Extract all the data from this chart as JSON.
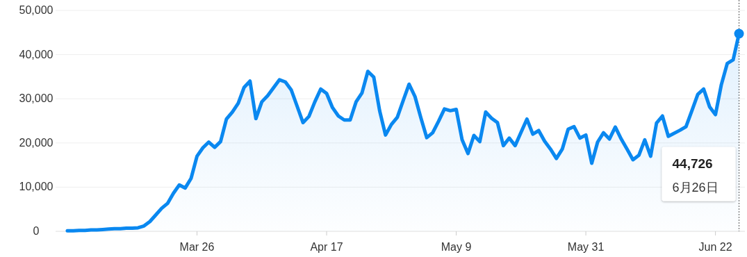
{
  "chart_data": {
    "type": "area",
    "x": [
      "--03-04",
      "--03-05",
      "--03-06",
      "--03-07",
      "--03-08",
      "--03-09",
      "--03-10",
      "--03-11",
      "--03-12",
      "--03-13",
      "--03-14",
      "--03-15",
      "--03-16",
      "--03-17",
      "--03-18",
      "--03-19",
      "--03-20",
      "--03-21",
      "--03-22",
      "--03-23",
      "--03-24",
      "--03-25",
      "--03-26",
      "--03-27",
      "--03-28",
      "--03-29",
      "--03-30",
      "--03-31",
      "--04-01",
      "--04-02",
      "--04-03",
      "--04-04",
      "--04-05",
      "--04-06",
      "--04-07",
      "--04-08",
      "--04-09",
      "--04-10",
      "--04-11",
      "--04-12",
      "--04-13",
      "--04-14",
      "--04-15",
      "--04-16",
      "--04-17",
      "--04-18",
      "--04-19",
      "--04-20",
      "--04-21",
      "--04-22",
      "--04-23",
      "--04-24",
      "--04-25",
      "--04-26",
      "--04-27",
      "--04-28",
      "--04-29",
      "--04-30",
      "--05-01",
      "--05-02",
      "--05-03",
      "--05-04",
      "--05-05",
      "--05-06",
      "--05-07",
      "--05-08",
      "--05-09",
      "--05-10",
      "--05-11",
      "--05-12",
      "--05-13",
      "--05-14",
      "--05-15",
      "--05-16",
      "--05-17",
      "--05-18",
      "--05-19",
      "--05-20",
      "--05-21",
      "--05-22",
      "--05-23",
      "--05-24",
      "--05-25",
      "--05-26",
      "--05-27",
      "--05-28",
      "--05-29",
      "--05-30",
      "--05-31",
      "--06-01",
      "--06-02",
      "--06-03",
      "--06-04",
      "--06-05",
      "--06-06",
      "--06-07",
      "--06-08",
      "--06-09",
      "--06-10",
      "--06-11",
      "--06-12",
      "--06-13",
      "--06-14",
      "--06-15",
      "--06-16",
      "--06-17",
      "--06-18",
      "--06-19",
      "--06-20",
      "--06-21",
      "--06-22",
      "--06-23",
      "--06-24",
      "--06-25",
      "--06-26"
    ],
    "series": [
      {
        "color": "#0a88f0",
        "values": [
          100,
          100,
          200,
          200,
          300,
          300,
          400,
          500,
          600,
          600,
          700,
          700,
          800,
          1200,
          2200,
          3700,
          5200,
          6300,
          8600,
          10500,
          9800,
          12000,
          17000,
          18900,
          20200,
          19000,
          20300,
          25400,
          27000,
          29000,
          32600,
          34000,
          25500,
          29300,
          30700,
          32500,
          34300,
          33800,
          32000,
          28300,
          24600,
          26000,
          29300,
          32200,
          31200,
          28000,
          26100,
          25200,
          25200,
          29300,
          31300,
          36200,
          34900,
          27300,
          21800,
          24200,
          25800,
          29600,
          33300,
          30500,
          25700,
          21200,
          22300,
          24900,
          27700,
          27300,
          27600,
          20700,
          17600,
          21700,
          20300,
          27000,
          25600,
          24600,
          19400,
          21100,
          19400,
          22400,
          25400,
          22000,
          22800,
          20400,
          18600,
          16500,
          18600,
          23100,
          23700,
          21100,
          21800,
          15400,
          20200,
          22300,
          20900,
          23600,
          20900,
          18600,
          16200,
          17200,
          20700,
          17000,
          24500,
          26100,
          21500,
          null,
          22900,
          23700,
          27300,
          31000,
          32200,
          28200,
          26400,
          33200,
          38000,
          38800,
          44726
        ]
      }
    ],
    "xlim": [
      "--03-02",
      "--06-27"
    ],
    "xticks": [
      {
        "value": "--03-26",
        "label": "Mar 26"
      },
      {
        "value": "--04-17",
        "label": "Apr 17"
      },
      {
        "value": "--05-09",
        "label": "May 9"
      },
      {
        "value": "--05-31",
        "label": "May 31"
      },
      {
        "value": "--06-22",
        "label": "Jun 22"
      }
    ],
    "ylim": [
      0,
      50000
    ],
    "yticks": [
      {
        "value": 0,
        "label": "0"
      },
      {
        "value": 10000,
        "label": "10,000"
      },
      {
        "value": 20000,
        "label": "20,000"
      },
      {
        "value": 30000,
        "label": "30,000"
      },
      {
        "value": 40000,
        "label": "40,000"
      },
      {
        "value": 50000,
        "label": "50,000"
      }
    ],
    "grid": "y",
    "ref_lines": [
      {
        "axis": "x",
        "value": "--06-26",
        "line_style": "dotted",
        "color": "#888888"
      }
    ],
    "annotations": [
      "44,726",
      "6月26日"
    ]
  }
}
